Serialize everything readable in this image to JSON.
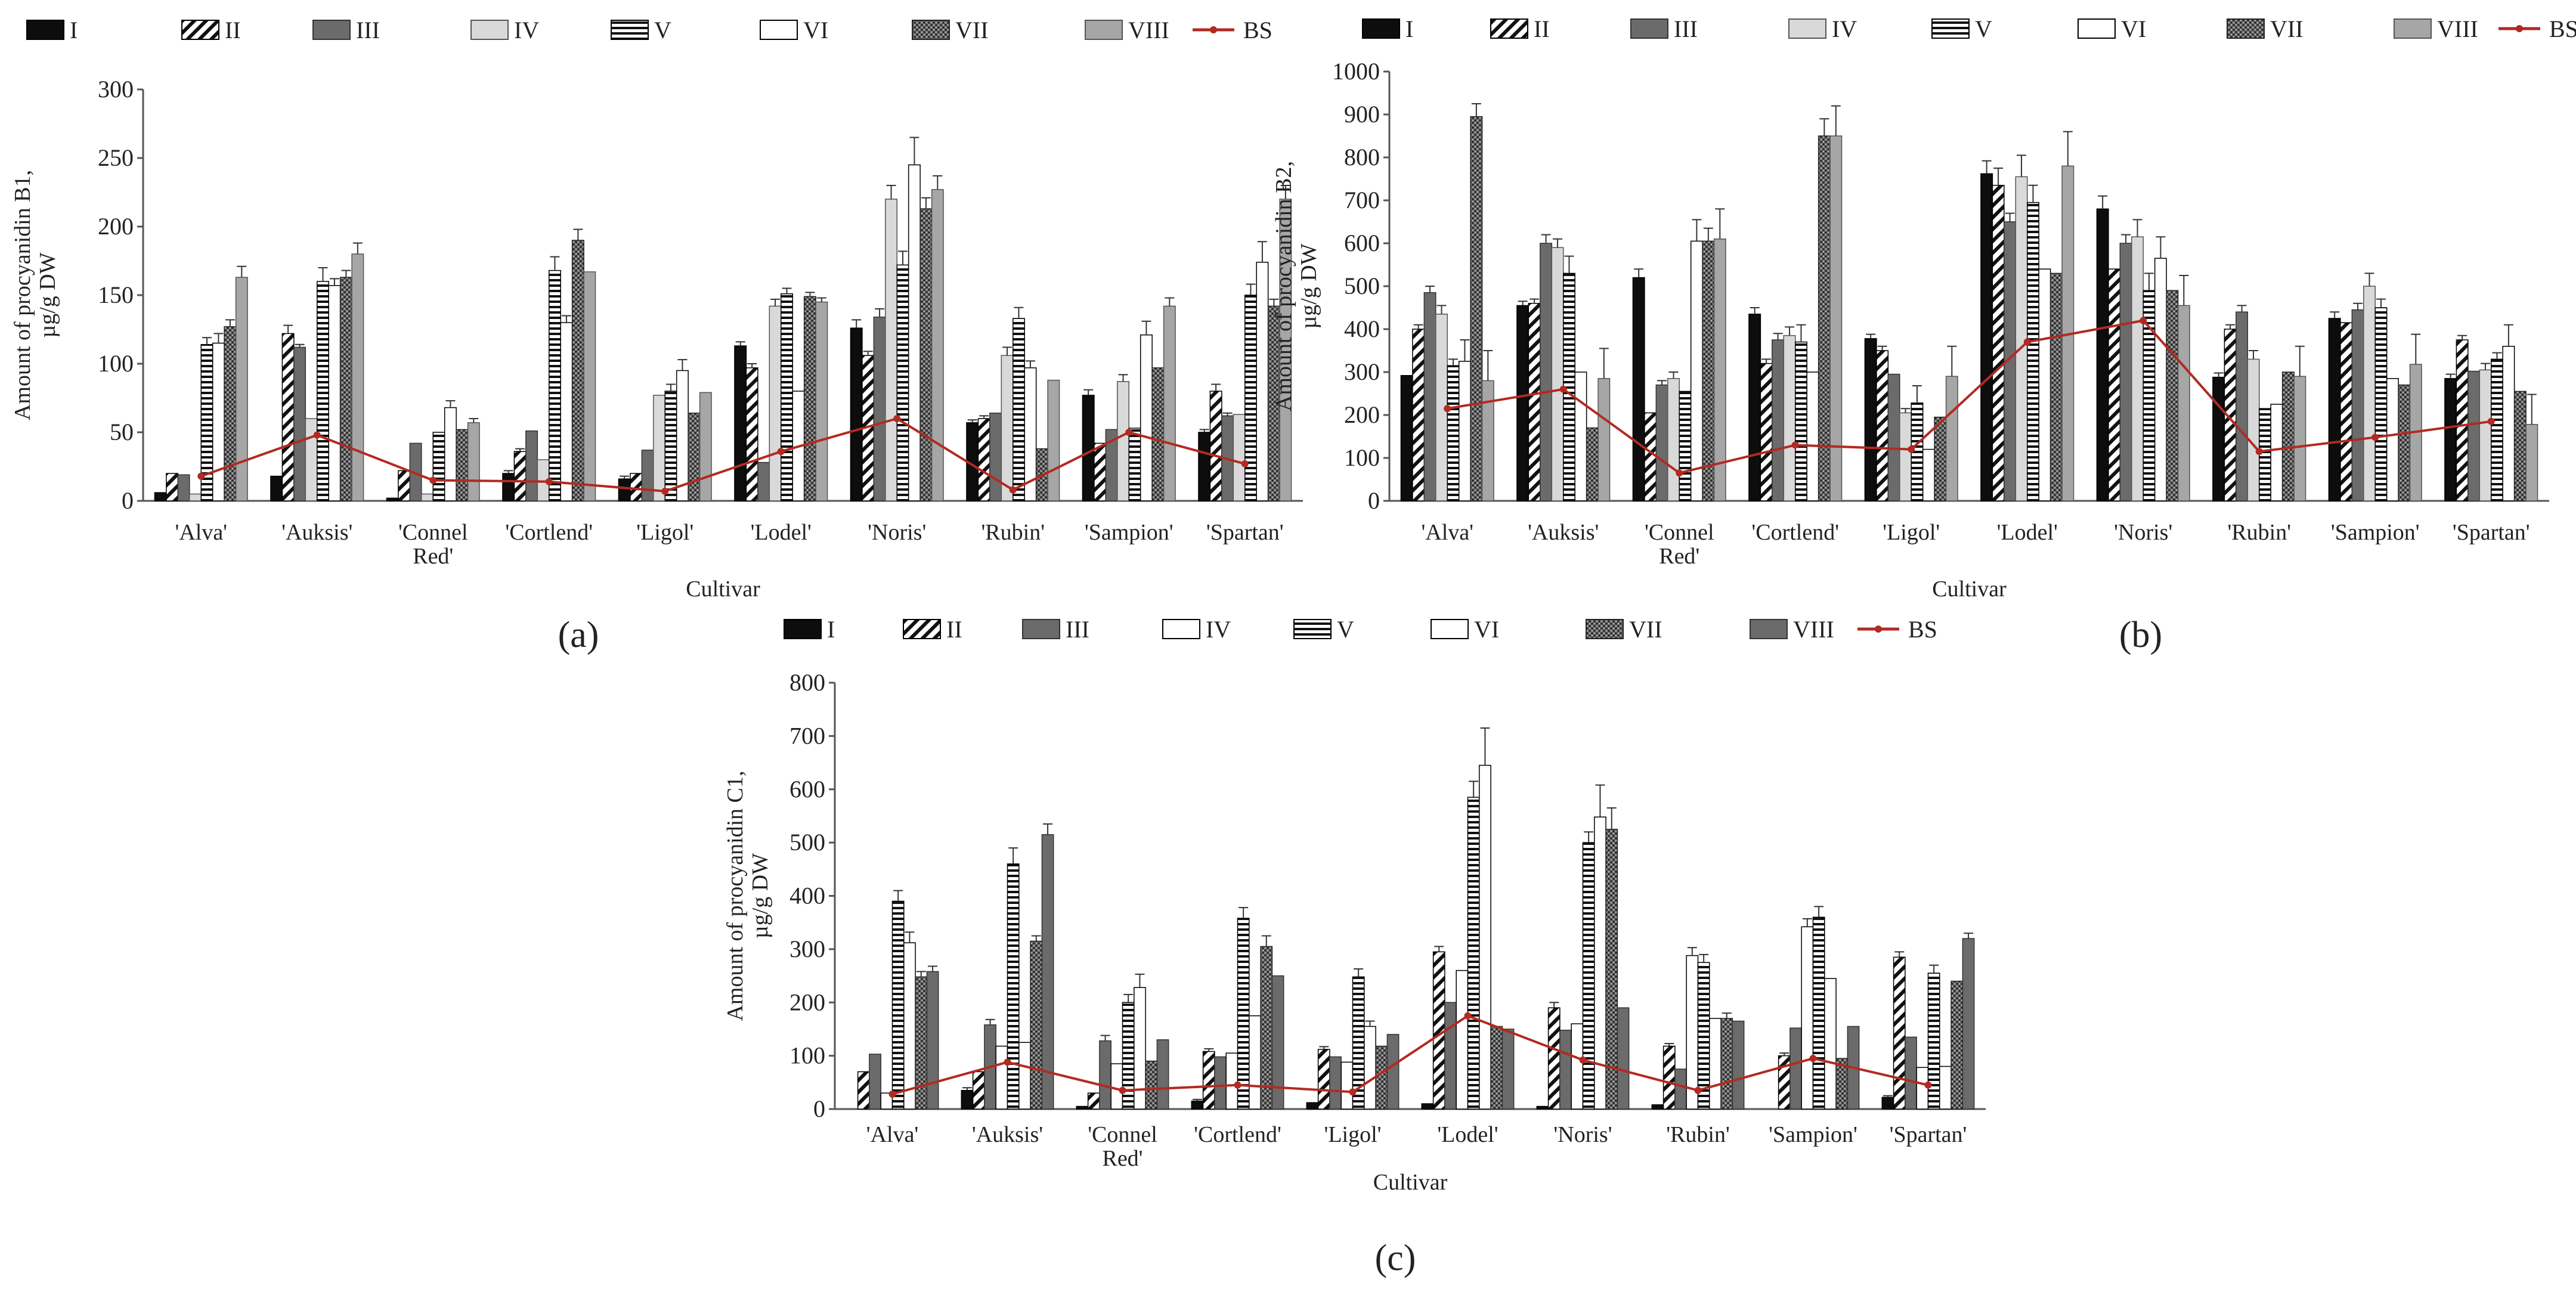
{
  "figure": {
    "panel_labels": [
      "(a)",
      "(b)",
      "(c)"
    ],
    "legend": {
      "entries": [
        "I",
        "II",
        "III",
        "IV",
        "V",
        "VI",
        "VII",
        "VIII",
        "BS"
      ],
      "patterns": [
        "solid-black",
        "diag-thin",
        "solid-darkgray",
        "solid-lightgray",
        "hlines",
        "solid-white",
        "dots",
        "solid-gray"
      ],
      "patterns_c": [
        "solid-black",
        "diag-thin",
        "solid-darkgray",
        "solid-white",
        "hlines",
        "solid-white",
        "dots",
        "solid-darkgray"
      ],
      "bs_color": "#b22a22"
    }
  },
  "chart_data": [
    {
      "type": "bar",
      "panel": "(a)",
      "title": "",
      "xlabel": "Cultivar",
      "ylabel_lines": [
        "Amount of procyanidin B1,",
        "µg/g DW"
      ],
      "ylim": [
        0,
        300
      ],
      "yticks": [
        0,
        50,
        100,
        150,
        200,
        250,
        300
      ],
      "categories": [
        "'Alva'",
        "'Auksis'",
        "'Connel|Red'",
        "'Cortlend'",
        "'Ligol'",
        "'Lodel'",
        "'Noris'",
        "'Rubin'",
        "'Sampion'",
        "'Spartan'"
      ],
      "series": [
        {
          "name": "I",
          "values": [
            6,
            18,
            2,
            20,
            16,
            113,
            126,
            57,
            77,
            50
          ],
          "errors": [
            0,
            0,
            0,
            2,
            2,
            3,
            6,
            2,
            4,
            2
          ]
        },
        {
          "name": "II",
          "values": [
            20,
            122,
            22,
            36,
            20,
            97,
            106,
            60,
            42,
            80
          ],
          "errors": [
            0,
            6,
            0,
            2,
            0,
            3,
            3,
            2,
            0,
            5
          ]
        },
        {
          "name": "III",
          "values": [
            19,
            112,
            42,
            51,
            37,
            28,
            134,
            64,
            52,
            62
          ],
          "errors": [
            0,
            2,
            0,
            0,
            0,
            0,
            6,
            0,
            0,
            2
          ]
        },
        {
          "name": "IV",
          "values": [
            5,
            60,
            5,
            30,
            77,
            142,
            220,
            106,
            87,
            63
          ],
          "errors": [
            0,
            0,
            0,
            0,
            0,
            5,
            10,
            6,
            5,
            0
          ]
        },
        {
          "name": "V",
          "values": [
            114,
            160,
            50,
            168,
            80,
            151,
            172,
            133,
            53,
            150
          ],
          "errors": [
            5,
            10,
            0,
            10,
            5,
            4,
            10,
            8,
            0,
            8
          ]
        },
        {
          "name": "VI",
          "values": [
            115,
            157,
            68,
            130,
            95,
            80,
            245,
            97,
            121,
            174
          ],
          "errors": [
            7,
            5,
            5,
            5,
            8,
            0,
            20,
            5,
            10,
            15
          ]
        },
        {
          "name": "VII",
          "values": [
            127,
            163,
            52,
            190,
            64,
            149,
            213,
            38,
            97,
            142
          ],
          "errors": [
            5,
            5,
            0,
            8,
            0,
            3,
            8,
            0,
            0,
            5
          ]
        },
        {
          "name": "VIII",
          "values": [
            163,
            180,
            57,
            167,
            79,
            145,
            227,
            88,
            142,
            220
          ],
          "errors": [
            8,
            8,
            3,
            0,
            0,
            3,
            10,
            0,
            6,
            10
          ]
        }
      ],
      "bs": [
        18,
        48,
        15,
        14,
        7,
        36,
        60,
        8,
        50,
        27
      ]
    },
    {
      "type": "bar",
      "panel": "(b)",
      "title": "",
      "xlabel": "Cultivar",
      "ylabel_lines": [
        "Amount of procyanidin B2,",
        "µg/g DW"
      ],
      "ylim": [
        0,
        1000
      ],
      "yticks": [
        0,
        100,
        200,
        300,
        400,
        500,
        600,
        700,
        800,
        900,
        1000
      ],
      "categories": [
        "'Alva'",
        "'Auksis'",
        "'Connel|Red'",
        "'Cortlend'",
        "'Ligol'",
        "'Lodel'",
        "'Noris'",
        "'Rubin'",
        "'Sampion'",
        "'Spartan'"
      ],
      "series": [
        {
          "name": "I",
          "values": [
            292,
            455,
            520,
            435,
            378,
            762,
            680,
            288,
            425,
            285
          ],
          "errors": [
            0,
            10,
            20,
            15,
            10,
            30,
            30,
            10,
            15,
            10
          ]
        },
        {
          "name": "II",
          "values": [
            400,
            460,
            205,
            320,
            350,
            735,
            540,
            400,
            415,
            375
          ],
          "errors": [
            10,
            10,
            0,
            10,
            10,
            40,
            0,
            10,
            0,
            10
          ]
        },
        {
          "name": "III",
          "values": [
            485,
            600,
            270,
            375,
            295,
            650,
            600,
            440,
            445,
            302
          ],
          "errors": [
            15,
            20,
            10,
            15,
            0,
            20,
            20,
            15,
            15,
            0
          ]
        },
        {
          "name": "IV",
          "values": [
            435,
            590,
            285,
            385,
            205,
            755,
            615,
            330,
            500,
            305
          ],
          "errors": [
            20,
            20,
            15,
            20,
            10,
            50,
            40,
            20,
            30,
            15
          ]
        },
        {
          "name": "V",
          "values": [
            315,
            530,
            255,
            370,
            228,
            695,
            490,
            215,
            450,
            330
          ],
          "errors": [
            15,
            40,
            0,
            40,
            40,
            40,
            40,
            0,
            20,
            15
          ]
        },
        {
          "name": "VI",
          "values": [
            325,
            300,
            605,
            300,
            120,
            540,
            565,
            225,
            285,
            360
          ],
          "errors": [
            50,
            0,
            50,
            0,
            0,
            0,
            50,
            0,
            0,
            50
          ]
        },
        {
          "name": "VII",
          "values": [
            895,
            170,
            605,
            850,
            195,
            530,
            490,
            300,
            270,
            255
          ],
          "errors": [
            30,
            0,
            30,
            40,
            0,
            0,
            0,
            0,
            0,
            0
          ]
        },
        {
          "name": "VIII",
          "values": [
            280,
            285,
            610,
            850,
            290,
            780,
            455,
            290,
            318,
            178
          ],
          "errors": [
            70,
            70,
            70,
            70,
            70,
            80,
            70,
            70,
            70,
            70
          ]
        }
      ],
      "bs": [
        215,
        260,
        65,
        130,
        120,
        370,
        420,
        115,
        148,
        185
      ]
    },
    {
      "type": "bar",
      "panel": "(c)",
      "title": "",
      "xlabel": "Cultivar",
      "ylabel_lines": [
        "Amount of procyanidin C1,",
        "µg/g DW"
      ],
      "ylim": [
        0,
        800
      ],
      "yticks": [
        0,
        100,
        200,
        300,
        400,
        500,
        600,
        700,
        800
      ],
      "categories": [
        "'Alva'",
        "'Auksis'",
        "'Connel|Red'",
        "'Cortlend'",
        "'Ligol'",
        "'Lodel'",
        "'Noris'",
        "'Rubin'",
        "'Sampion'",
        "'Spartan'"
      ],
      "series": [
        {
          "name": "I",
          "values": [
            0,
            35,
            5,
            15,
            12,
            10,
            5,
            8,
            0,
            22
          ],
          "errors": [
            0,
            5,
            0,
            3,
            0,
            0,
            0,
            0,
            0,
            3
          ]
        },
        {
          "name": "II",
          "values": [
            70,
            70,
            30,
            108,
            112,
            295,
            190,
            118,
            100,
            285
          ],
          "errors": [
            0,
            0,
            0,
            5,
            5,
            10,
            10,
            5,
            5,
            10
          ]
        },
        {
          "name": "III",
          "values": [
            103,
            158,
            128,
            98,
            98,
            200,
            148,
            75,
            152,
            135
          ],
          "errors": [
            0,
            10,
            10,
            0,
            0,
            0,
            0,
            0,
            0,
            0
          ]
        },
        {
          "name": "IV",
          "values": [
            30,
            118,
            85,
            105,
            88,
            260,
            160,
            288,
            342,
            78
          ],
          "errors": [
            0,
            0,
            0,
            0,
            0,
            0,
            0,
            15,
            15,
            0
          ]
        },
        {
          "name": "V",
          "values": [
            390,
            460,
            200,
            358,
            248,
            585,
            500,
            275,
            360,
            255
          ],
          "errors": [
            20,
            30,
            15,
            20,
            15,
            30,
            20,
            15,
            20,
            15
          ]
        },
        {
          "name": "VI",
          "values": [
            312,
            125,
            228,
            175,
            155,
            645,
            548,
            170,
            245,
            80
          ],
          "errors": [
            20,
            0,
            25,
            0,
            10,
            70,
            60,
            0,
            0,
            0
          ]
        },
        {
          "name": "VII",
          "values": [
            248,
            315,
            90,
            305,
            118,
            155,
            525,
            170,
            95,
            240
          ],
          "errors": [
            10,
            10,
            0,
            20,
            0,
            0,
            40,
            10,
            0,
            0
          ]
        },
        {
          "name": "VIII",
          "values": [
            258,
            515,
            130,
            250,
            140,
            150,
            190,
            165,
            155,
            320
          ],
          "errors": [
            10,
            20,
            0,
            0,
            0,
            0,
            0,
            0,
            0,
            10
          ]
        }
      ],
      "bs": [
        28,
        88,
        35,
        45,
        32,
        175,
        92,
        35,
        95,
        45
      ]
    }
  ]
}
